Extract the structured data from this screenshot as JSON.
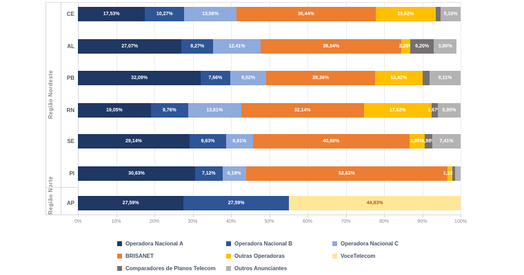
{
  "chart_data": {
    "type": "bar",
    "orientation": "horizontal",
    "stacked": true,
    "value_format": "percent_pt_BR",
    "xlim": [
      0,
      100
    ],
    "x_ticks": [
      "0%",
      "10%",
      "20%",
      "30%",
      "40%",
      "50%",
      "60%",
      "70%",
      "80%",
      "90%",
      "100%"
    ],
    "grid": true,
    "legend_position": "bottom",
    "series": [
      {
        "name": "Operadora Nacional A",
        "color": "#1F3864",
        "label_color": "#FFFFFF"
      },
      {
        "name": "Operadora Nacional B",
        "color": "#2E5596",
        "label_color": "#FFFFFF"
      },
      {
        "name": "Operadora Nacional C",
        "color": "#8FAADC",
        "label_color": "#FFFFFF"
      },
      {
        "name": "BRISANET",
        "color": "#ED7D31",
        "label_color": "#FFFFFF"
      },
      {
        "name": "Outras Operadoras",
        "color": "#FFC000",
        "label_color": "#FFFFFF"
      },
      {
        "name": "VoceTelecom",
        "color": "#FFE699",
        "label_color": "#C55A11"
      },
      {
        "name": "Comparadores de Planos Telecom",
        "color": "#757070",
        "label_color": "#FFFFFF"
      },
      {
        "name": "Outros Anunciantes",
        "color": "#B5B2B2",
        "label_color": "#FFFFFF"
      }
    ],
    "groups": [
      {
        "region": "Região Nordeste",
        "rows": [
          {
            "category": "CE",
            "values": [
              17.53,
              10.27,
              13.58,
              36.44,
              15.62,
              0,
              1.4,
              5.16
            ],
            "labels": [
              "17,53%",
              "10,27%",
              "13,58%",
              "36,44%",
              "15,62%",
              "",
              "",
              "5,16%"
            ]
          },
          {
            "category": "AL",
            "values": [
              27.07,
              8.27,
              12.41,
              36.84,
              2.26,
              0,
              6.2,
              5.9
            ],
            "labels": [
              "27,07%",
              "8,27%",
              "12,41%",
              "36,84%",
              "2,26%",
              "",
              "6,20%",
              "5,90%"
            ]
          },
          {
            "category": "PB",
            "values": [
              32.09,
              7.66,
              9.52,
              28.36,
              12.42,
              0,
              1.84,
              8.11
            ],
            "labels": [
              "32,09%",
              "7,66%",
              "9,52%",
              "28,36%",
              "12,42%",
              "",
              "",
              "8,11%"
            ]
          },
          {
            "category": "RN",
            "values": [
              19.05,
              9.76,
              13.81,
              32.14,
              17.62,
              0,
              1.67,
              5.95
            ],
            "labels": [
              "19,05%",
              "9,76%",
              "13,81%",
              "32,14%",
              "17,62%",
              "",
              "1,67%",
              "5,95%"
            ]
          },
          {
            "category": "SE",
            "values": [
              29.14,
              9.63,
              6.91,
              40.99,
              3.95,
              0,
              1.98,
              7.41
            ],
            "labels": [
              "29,14%",
              "9,63%",
              "6,91%",
              "40,99%",
              "3,95%",
              "",
              "1,98%",
              "7,41%"
            ]
          },
          {
            "category": "PI",
            "values": [
              30.63,
              7.12,
              6.19,
              52.63,
              1.33,
              0,
              0.7,
              1.4
            ],
            "labels": [
              "30,63%",
              "7,12%",
              "6,19%",
              "52,63%",
              "1,33%",
              "",
              "",
              ""
            ]
          }
        ]
      },
      {
        "region": "Região Norte",
        "rows": [
          {
            "category": "AP",
            "values": [
              27.59,
              27.59,
              0,
              0,
              0,
              44.83,
              0,
              0
            ],
            "labels": [
              "27,59%",
              "27,59%",
              "",
              "",
              "",
              "44,83%",
              "",
              ""
            ]
          }
        ]
      }
    ]
  }
}
